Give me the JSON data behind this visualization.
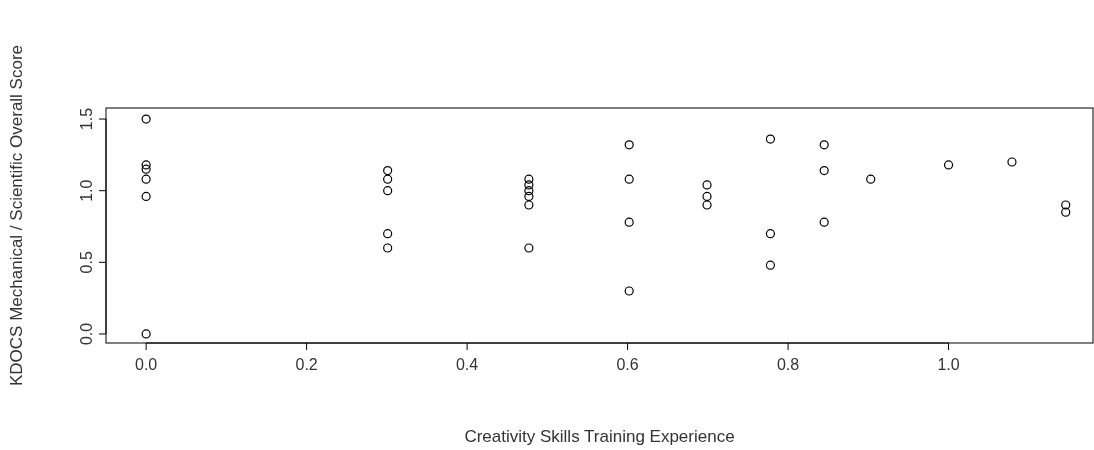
{
  "chart_data": {
    "type": "scatter",
    "xlabel": "Creativity Skills Training Experience",
    "ylabel": "KDOCS Mechanical / Scientific Overall Score",
    "x": [
      0,
      0,
      0,
      0,
      0,
      0,
      0.301,
      0.301,
      0.301,
      0.301,
      0.301,
      0.477,
      0.477,
      0.477,
      0.477,
      0.477,
      0.477,
      0.602,
      0.602,
      0.602,
      0.602,
      0.699,
      0.699,
      0.699,
      0.778,
      0.778,
      0.778,
      0.845,
      0.845,
      0.845,
      0.903,
      1.0,
      1.079,
      1.146,
      1.146
    ],
    "series": [
      {
        "color": "#000000",
        "values": [
          1.5,
          1.18,
          1.15,
          1.08,
          0.96,
          0,
          1.14,
          1.08,
          1.0,
          0.7,
          0.6,
          1.08,
          1.04,
          1.0,
          0.96,
          0.9,
          0.6,
          1.32,
          1.08,
          0.78,
          0.3,
          1.04,
          0.96,
          0.9,
          1.36,
          0.7,
          0.48,
          1.32,
          1.14,
          0.78,
          1.08,
          1.18,
          1.2,
          0.9,
          0.85
        ]
      }
    ],
    "xlim": [
      -0.05,
      1.18
    ],
    "ylim": [
      -0.063,
      1.577
    ],
    "xticks": [
      {
        "value": 0,
        "label": "0.0"
      },
      0.2,
      0.4,
      0.6,
      0.8,
      {
        "value": 1,
        "label": "1.0"
      }
    ],
    "yticks": [
      {
        "value": 0,
        "label": "0.0"
      },
      0.5,
      {
        "value": 1,
        "label": "1.0"
      },
      1.5
    ],
    "marker": "circle",
    "grid": false
  }
}
